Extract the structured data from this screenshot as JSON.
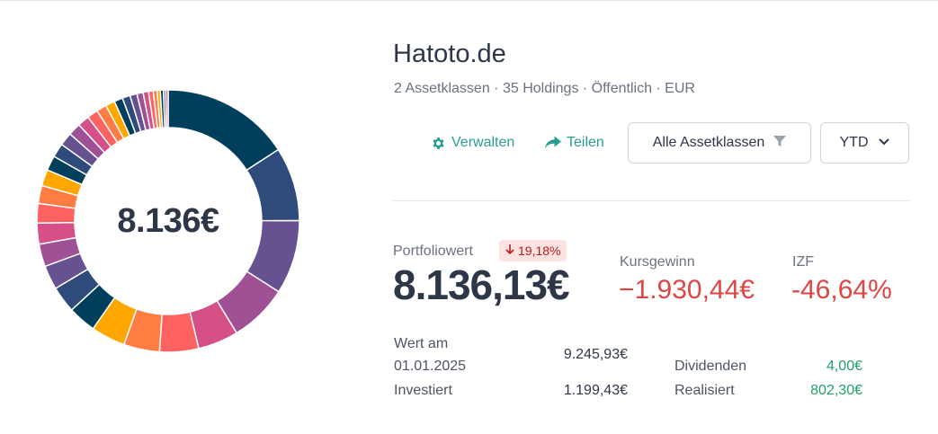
{
  "portfolio": {
    "name": "Hatoto.de",
    "subtitle": "2 Assetklassen · 35 Holdings · Öffentlich · EUR",
    "donut_center": "8.136€"
  },
  "actions": {
    "manage_label": "Verwalten",
    "share_label": "Teilen",
    "filter_label": "Alle Assetklassen",
    "period_label": "YTD"
  },
  "summary": {
    "portfolio_value_label": "Portfoliowert",
    "change_badge": "19,18%",
    "portfolio_value": "8.136,13€",
    "price_gain_label": "Kursgewinn",
    "price_gain_value": "−1.930,44€",
    "irr_label": "IZF",
    "irr_value": "-46,64%"
  },
  "details": {
    "value_at_label_line1": "Wert am",
    "value_at_label_line2": "01.01.2025",
    "value_at": "9.245,93€",
    "invested_label": "Investiert",
    "invested": "1.199,43€",
    "dividends_label": "Dividenden",
    "dividends": "4,00€",
    "realized_label": "Realisiert",
    "realized": "802,30€"
  },
  "colors": {
    "accent": "#2a9d8f",
    "negative": "#e04545",
    "positive": "#22a06b"
  },
  "chart_data": {
    "type": "pie",
    "center_label": "8.136€",
    "slices": [
      {
        "value": 16.5,
        "color": "#003f5c"
      },
      {
        "value": 9.5,
        "color": "#2f4b7c"
      },
      {
        "value": 9.5,
        "color": "#665191"
      },
      {
        "value": 7.5,
        "color": "#a05195"
      },
      {
        "value": 5.2,
        "color": "#d45087"
      },
      {
        "value": 5.0,
        "color": "#ff6361"
      },
      {
        "value": 4.6,
        "color": "#ff7c43"
      },
      {
        "value": 4.4,
        "color": "#ffa600"
      },
      {
        "value": 3.6,
        "color": "#003f5c"
      },
      {
        "value": 3.4,
        "color": "#2f4b7c"
      },
      {
        "value": 3.1,
        "color": "#665191"
      },
      {
        "value": 2.9,
        "color": "#a05195"
      },
      {
        "value": 2.7,
        "color": "#d45087"
      },
      {
        "value": 2.5,
        "color": "#ff6361"
      },
      {
        "value": 2.3,
        "color": "#ff7c43"
      },
      {
        "value": 2.1,
        "color": "#ffa600"
      },
      {
        "value": 1.9,
        "color": "#003f5c"
      },
      {
        "value": 1.8,
        "color": "#2f4b7c"
      },
      {
        "value": 1.7,
        "color": "#665191"
      },
      {
        "value": 1.6,
        "color": "#a05195"
      },
      {
        "value": 1.5,
        "color": "#d45087"
      },
      {
        "value": 1.4,
        "color": "#ff6361"
      },
      {
        "value": 1.3,
        "color": "#ff7c43"
      },
      {
        "value": 1.2,
        "color": "#ffa600"
      },
      {
        "value": 1.1,
        "color": "#003f5c"
      },
      {
        "value": 1.0,
        "color": "#2f4b7c"
      },
      {
        "value": 0.9,
        "color": "#665191"
      },
      {
        "value": 0.8,
        "color": "#a05195"
      },
      {
        "value": 0.7,
        "color": "#d45087"
      },
      {
        "value": 0.6,
        "color": "#ff6361"
      },
      {
        "value": 0.5,
        "color": "#ff7c43"
      },
      {
        "value": 0.4,
        "color": "#ffa600"
      },
      {
        "value": 0.4,
        "color": "#003f5c"
      },
      {
        "value": 0.3,
        "color": "#665191"
      },
      {
        "value": 0.3,
        "color": "#d45087"
      }
    ]
  }
}
